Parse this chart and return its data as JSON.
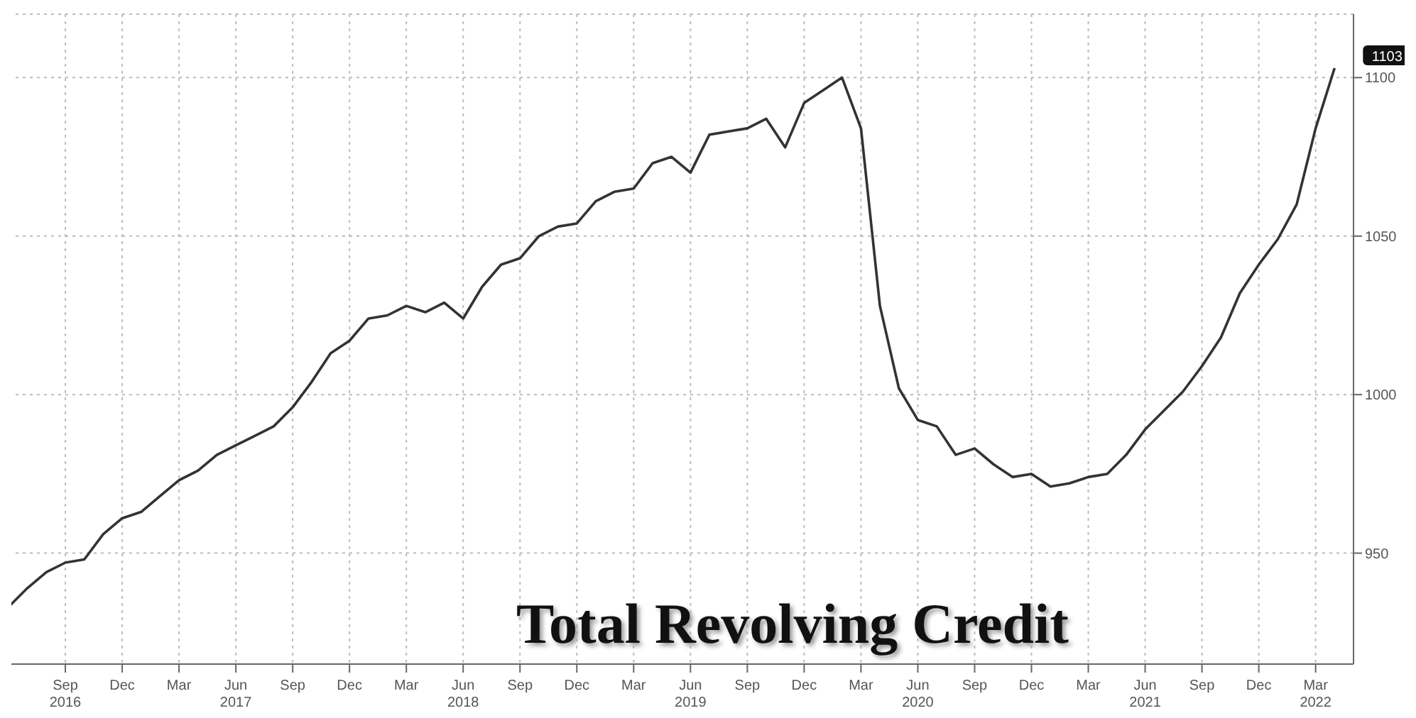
{
  "chart_data": {
    "type": "line",
    "title": "Total Revolving Credit",
    "x": [
      "2016-06",
      "2016-07",
      "2016-08",
      "2016-09",
      "2016-10",
      "2016-11",
      "2016-12",
      "2017-01",
      "2017-02",
      "2017-03",
      "2017-04",
      "2017-05",
      "2017-06",
      "2017-07",
      "2017-08",
      "2017-09",
      "2017-10",
      "2017-11",
      "2017-12",
      "2018-01",
      "2018-02",
      "2018-03",
      "2018-04",
      "2018-05",
      "2018-06",
      "2018-07",
      "2018-08",
      "2018-09",
      "2018-10",
      "2018-11",
      "2018-12",
      "2019-01",
      "2019-02",
      "2019-03",
      "2019-04",
      "2019-05",
      "2019-06",
      "2019-07",
      "2019-08",
      "2019-09",
      "2019-10",
      "2019-11",
      "2019-12",
      "2020-01",
      "2020-02",
      "2020-03",
      "2020-04",
      "2020-05",
      "2020-06",
      "2020-07",
      "2020-08",
      "2020-09",
      "2020-10",
      "2020-11",
      "2020-12",
      "2021-01",
      "2021-02",
      "2021-03",
      "2021-04",
      "2021-05",
      "2021-06",
      "2021-07",
      "2021-08",
      "2021-09",
      "2021-10",
      "2021-11",
      "2021-12",
      "2022-01",
      "2022-02",
      "2022-03",
      "2022-04"
    ],
    "series": [
      {
        "color": "#333333",
        "values": [
          933,
          939,
          944,
          947,
          948,
          956,
          961,
          963,
          968,
          973,
          976,
          981,
          984,
          987,
          990,
          996,
          1004,
          1013,
          1017,
          1024,
          1025,
          1028,
          1026,
          1029,
          1024,
          1034,
          1041,
          1043,
          1050,
          1053,
          1054,
          1061,
          1064,
          1065,
          1073,
          1075,
          1070,
          1082,
          1083,
          1084,
          1087,
          1078,
          1092,
          1096,
          1100,
          1084,
          1028,
          1002,
          992,
          990,
          981,
          983,
          978,
          974,
          975,
          971,
          972,
          974,
          975,
          981,
          989,
          995,
          1001,
          1009,
          1018,
          1032,
          1041,
          1049,
          1060,
          1084,
          1103
        ]
      }
    ],
    "xlim": [
      "2016-06",
      "2022-05"
    ],
    "xticks": [
      {
        "value": "2016-09",
        "label": "Sep 2016"
      },
      {
        "value": "2016-12",
        "label": "Dec"
      },
      {
        "value": "2017-03",
        "label": "Mar"
      },
      {
        "value": "2017-06",
        "label": "Jun 2017"
      },
      {
        "value": "2017-09",
        "label": "Sep"
      },
      {
        "value": "2017-12",
        "label": "Dec"
      },
      {
        "value": "2018-03",
        "label": "Mar"
      },
      {
        "value": "2018-06",
        "label": "Jun 2018"
      },
      {
        "value": "2018-09",
        "label": "Sep"
      },
      {
        "value": "2018-12",
        "label": "Dec"
      },
      {
        "value": "2019-03",
        "label": "Mar"
      },
      {
        "value": "2019-06",
        "label": "Jun 2019"
      },
      {
        "value": "2019-09",
        "label": "Sep"
      },
      {
        "value": "2019-12",
        "label": "Dec"
      },
      {
        "value": "2020-03",
        "label": "Mar"
      },
      {
        "value": "2020-06",
        "label": "Jun 2020"
      },
      {
        "value": "2020-09",
        "label": "Sep"
      },
      {
        "value": "2020-12",
        "label": "Dec"
      },
      {
        "value": "2021-03",
        "label": "Mar"
      },
      {
        "value": "2021-06",
        "label": "Jun 2021"
      },
      {
        "value": "2021-09",
        "label": "Sep"
      },
      {
        "value": "2021-12",
        "label": "Dec"
      },
      {
        "value": "2022-03",
        "label": "Mar 2022"
      }
    ],
    "ylim": [
      915,
      1120
    ],
    "yticks": [
      950,
      1000,
      1050,
      1100
    ],
    "grid": true,
    "marker": "none",
    "line_style": "solid",
    "annotations": [
      {
        "text": "1103",
        "x": "2022-04",
        "y": 1103
      }
    ]
  }
}
